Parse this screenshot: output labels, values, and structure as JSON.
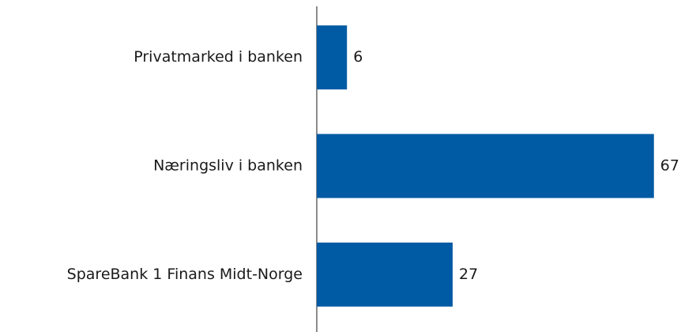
{
  "chart_data": {
    "type": "bar",
    "orientation": "horizontal",
    "categories": [
      "Privatmarked i banken",
      "Næringsliv i banken",
      "SpareBank 1 Finans Midt-Norge"
    ],
    "values": [
      6,
      67,
      27
    ],
    "color": "#005aa4"
  }
}
